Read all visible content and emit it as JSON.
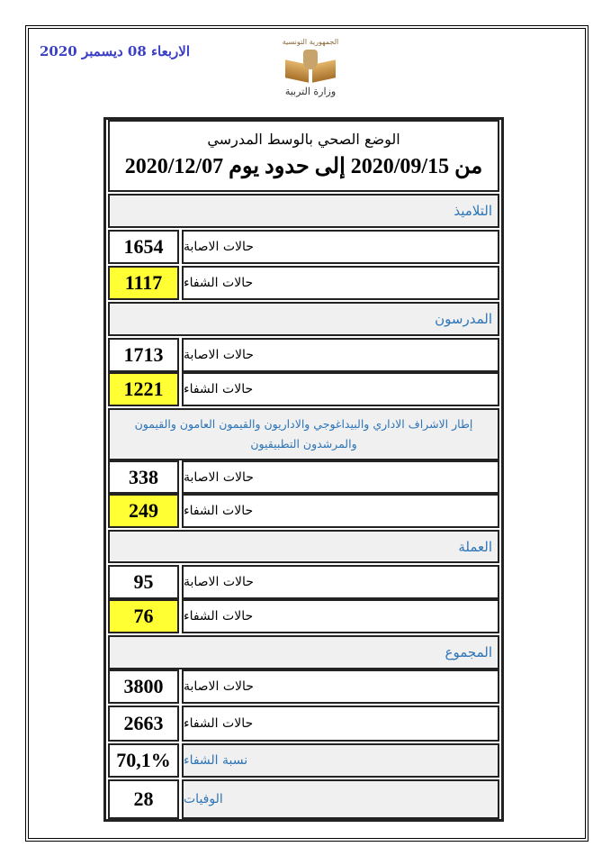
{
  "date": "الاربعاء 08 ديسمبر 2020",
  "logo": {
    "top": "الجمهورية التونسية",
    "name": "وزارة التربية"
  },
  "header": {
    "title": "الوضع الصحي بالوسط المدرسي",
    "period": "من 2020/09/15 إلى حدود يوم 2020/12/07"
  },
  "sections": [
    {
      "title": "التلاميذ",
      "infections_label": "حالات الاصابة",
      "infections": "1654",
      "recoveries_label": "حالات الشفاء",
      "recoveries": "1117"
    },
    {
      "title": "المدرسون",
      "infections_label": "حالات الاصابة",
      "infections": "1713",
      "recoveries_label": "حالات الشفاء",
      "recoveries": "1221"
    },
    {
      "title": "إطار الاشراف الاداري والبيداغوجي والاداريون والقيمون العامون والقيمون والمرشدون التطبيقيون",
      "infections_label": "حالات الاصابة",
      "infections": "338",
      "recoveries_label": "حالات الشفاء",
      "recoveries": "249"
    },
    {
      "title": "العملة",
      "infections_label": "حالات الاصابة",
      "infections": "95",
      "recoveries_label": "حالات الشفاء",
      "recoveries": "76"
    },
    {
      "title": "المجموع",
      "infections_label": "حالات الاصابة",
      "infections": "3800",
      "recoveries_label": "حالات الشفاء",
      "recoveries": "2663"
    }
  ],
  "recovery_rate": {
    "label": "نسبة الشفاء",
    "value": "70,1%"
  },
  "deaths": {
    "label": "الوفيات",
    "value": "28"
  },
  "colors": {
    "highlight": "#ffff33",
    "section_text": "#2e75b6",
    "date_text": "#3a3fc4"
  }
}
